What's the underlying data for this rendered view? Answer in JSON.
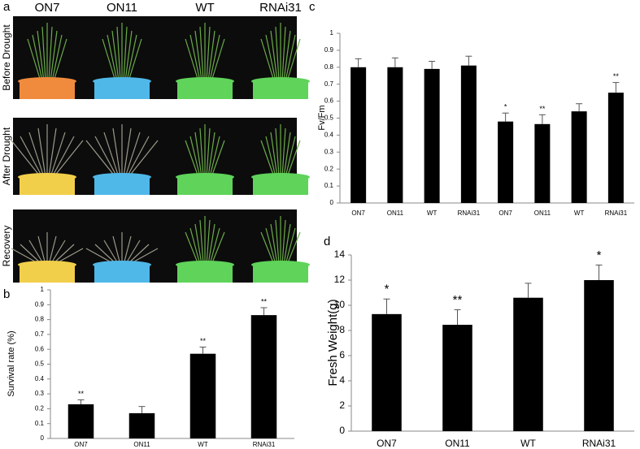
{
  "photo_panel": {
    "panel_label": "a",
    "columns": [
      "ON7",
      "ON11",
      "WT",
      "RNAi31"
    ],
    "rows": [
      "Before Drought",
      "After Drought",
      "Recovery"
    ]
  },
  "chart_data": [
    {
      "type": "bar",
      "panel_label": "b",
      "y_label": "Survival rate (%)",
      "categories": [
        "ON7",
        "ON11",
        "WT",
        "RNAi31"
      ],
      "values": [
        0.23,
        0.17,
        0.57,
        0.83
      ],
      "errors": [
        0.03,
        0.045,
        0.045,
        0.05
      ],
      "annotations": [
        "**",
        null,
        "**",
        "**"
      ],
      "color": "#000000",
      "ylim": [
        0,
        1
      ],
      "yticks": [
        0,
        0.1,
        0.2,
        0.3,
        0.4,
        0.5,
        0.6,
        0.7,
        0.8,
        0.9,
        1
      ],
      "grid": false
    },
    {
      "type": "bar",
      "panel_label": "c",
      "y_label": "Fv/Fm",
      "categories": [
        "ON7",
        "ON11",
        "WT",
        "RNAi31",
        "ON7",
        "ON11",
        "WT",
        "RNAi31"
      ],
      "values": [
        0.8,
        0.8,
        0.79,
        0.81,
        0.48,
        0.465,
        0.54,
        0.65
      ],
      "errors": [
        0.05,
        0.055,
        0.045,
        0.055,
        0.05,
        0.055,
        0.045,
        0.06
      ],
      "annotations": [
        null,
        null,
        null,
        null,
        "*",
        "**",
        null,
        "**"
      ],
      "color": "#000000",
      "ylim": [
        0,
        1
      ],
      "yticks": [
        0,
        0.1,
        0.2,
        0.3,
        0.4,
        0.5,
        0.6,
        0.7,
        0.8,
        0.9,
        1
      ],
      "grid": false
    },
    {
      "type": "bar",
      "panel_label": "d",
      "y_label": "Fresh Weight(g)",
      "categories": [
        "ON7",
        "ON11",
        "WT",
        "RNAi31"
      ],
      "values": [
        9.3,
        8.45,
        10.6,
        12.0
      ],
      "errors": [
        1.2,
        1.2,
        1.15,
        1.2
      ],
      "annotations": [
        "*",
        "**",
        null,
        "*"
      ],
      "color": "#000000",
      "ylim": [
        0,
        14
      ],
      "yticks": [
        0,
        2,
        4,
        6,
        8,
        10,
        12,
        14
      ],
      "grid": false
    }
  ]
}
